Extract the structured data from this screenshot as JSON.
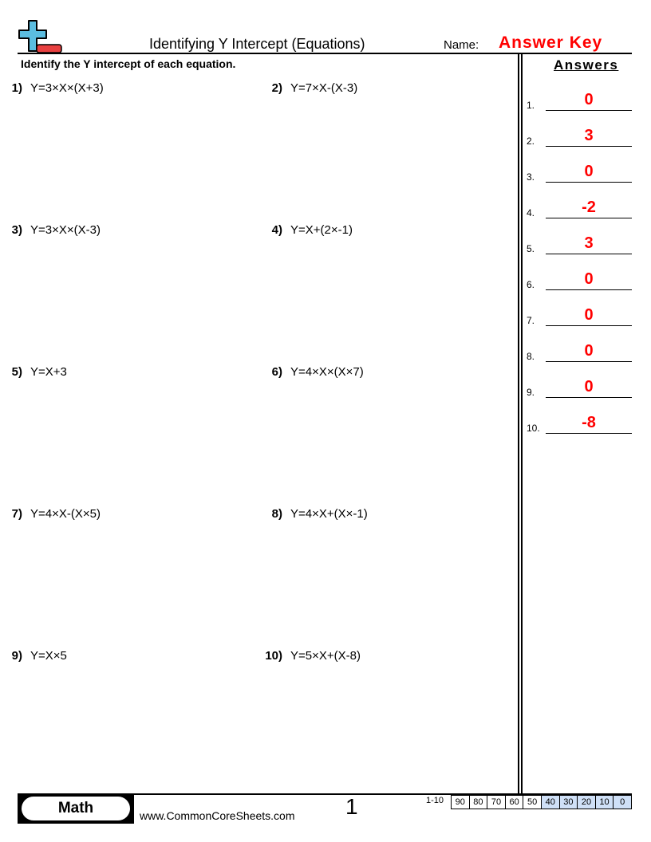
{
  "header": {
    "title": "Identifying Y Intercept (Equations)",
    "name_label": "Name:",
    "name_value": "Answer Key",
    "logo_icon": "plus-minus-logo-icon"
  },
  "instructions": "Identify the Y intercept of each equation.",
  "problems": [
    {
      "num": "1)",
      "eq": "Y=3×X×(X+3)"
    },
    {
      "num": "2)",
      "eq": "Y=7×X-(X-3)"
    },
    {
      "num": "3)",
      "eq": "Y=3×X×(X-3)"
    },
    {
      "num": "4)",
      "eq": "Y=X+(2×-1)"
    },
    {
      "num": "5)",
      "eq": "Y=X+3"
    },
    {
      "num": "6)",
      "eq": "Y=4×X×(X×7)"
    },
    {
      "num": "7)",
      "eq": "Y=4×X-(X×5)"
    },
    {
      "num": "8)",
      "eq": "Y=4×X+(X×-1)"
    },
    {
      "num": "9)",
      "eq": "Y=X×5"
    },
    {
      "num": "10)",
      "eq": "Y=5×X+(X-8)"
    }
  ],
  "answers": {
    "heading": "Answers",
    "items": [
      {
        "num": "1.",
        "val": "0"
      },
      {
        "num": "2.",
        "val": "3"
      },
      {
        "num": "3.",
        "val": "0"
      },
      {
        "num": "4.",
        "val": "-2"
      },
      {
        "num": "5.",
        "val": "3"
      },
      {
        "num": "6.",
        "val": "0"
      },
      {
        "num": "7.",
        "val": "0"
      },
      {
        "num": "8.",
        "val": "0"
      },
      {
        "num": "9.",
        "val": "0"
      },
      {
        "num": "10.",
        "val": "-8"
      }
    ]
  },
  "footer": {
    "subject": "Math",
    "url": "www.CommonCoreSheets.com",
    "page": "1",
    "range": "1-10",
    "scores": [
      "90",
      "80",
      "70",
      "60",
      "50",
      "40",
      "30",
      "20",
      "10",
      "0"
    ]
  },
  "colors": {
    "accent": "#ff0000",
    "score_highlight": "#cfe0f7",
    "logo_blue": "#5bbde0",
    "logo_red": "#e84040"
  }
}
